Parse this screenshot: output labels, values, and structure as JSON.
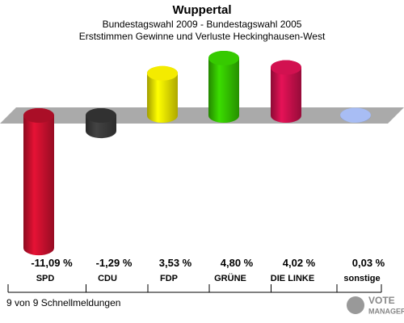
{
  "chart_data": {
    "type": "bar",
    "title": "Wuppertal",
    "subtitle": [
      "Bundestagswahl 2009 - Bundestagswahl 2005",
      "Erststimmen Gewinne und Verluste Heckinghausen-West"
    ],
    "categories": [
      "SPD",
      "CDU",
      "FDP",
      "GRÜNE",
      "DIE LINKE",
      "sonstige"
    ],
    "values": [
      -11.09,
      -1.29,
      3.53,
      4.8,
      4.02,
      0.03
    ],
    "value_labels": [
      "-11,09 %",
      "-1,29 %",
      "3,53 %",
      "4,80 %",
      "4,02 %",
      "0,03 %"
    ],
    "colors": [
      "#c8102e",
      "#3a3a3a",
      "#e8e000",
      "#33c000",
      "#c8104c",
      "#a0b4e8"
    ],
    "footer": "9 von 9 Schnellmeldungen",
    "logo": [
      "VOTE",
      "MANAGER"
    ]
  }
}
